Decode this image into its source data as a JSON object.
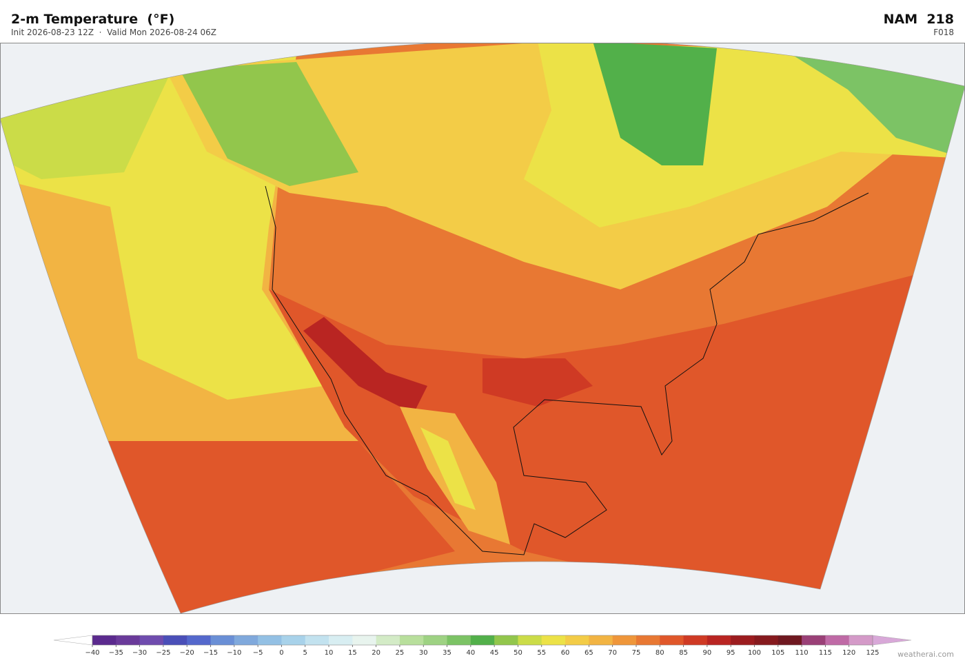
{
  "header": {
    "title": "2-m Temperature  (°F)",
    "subtitle": "Init 2026-08-23 12Z  ·  Valid Mon 2026-08-24 06Z",
    "model": "NAM  218",
    "forecast_hour": "F018"
  },
  "colorbar": {
    "ticks": [
      {
        "value": -40,
        "label": "−40"
      },
      {
        "value": -35,
        "label": "−35"
      },
      {
        "value": -30,
        "label": "−30"
      },
      {
        "value": -25,
        "label": "−25"
      },
      {
        "value": -20,
        "label": "−20"
      },
      {
        "value": -15,
        "label": "−15"
      },
      {
        "value": -10,
        "label": "−10"
      },
      {
        "value": -5,
        "label": "−5"
      },
      0,
      5,
      10,
      15,
      20,
      25,
      30,
      35,
      40,
      45,
      50,
      55,
      60,
      65,
      70,
      75,
      80,
      85,
      90,
      95,
      100,
      105,
      110,
      115,
      120,
      125
    ],
    "colors": [
      "#5b2a8e",
      "#6a3a9a",
      "#6f4cae",
      "#4a4fb8",
      "#5468cc",
      "#6a8fd6",
      "#80a9dc",
      "#93c0e4",
      "#a8d2ea",
      "#c2e2ef",
      "#d8eef2",
      "#e8f4ee",
      "#d3ebc6",
      "#b8df9c",
      "#9ed283",
      "#7cc365",
      "#52b04a",
      "#92c64c",
      "#cbdc48",
      "#ece247",
      "#f3cc47",
      "#f2b443",
      "#ef963a",
      "#e87833",
      "#e0572a",
      "#cf3a24",
      "#b92522",
      "#9c1c1f",
      "#861a1e",
      "#6f1820",
      "#9a4077",
      "#bf6aa6",
      "#d49ac8"
    ],
    "under_color": "#ffffff",
    "over_color": "#d8a8d8"
  },
  "watermark": "weatherai.com"
}
